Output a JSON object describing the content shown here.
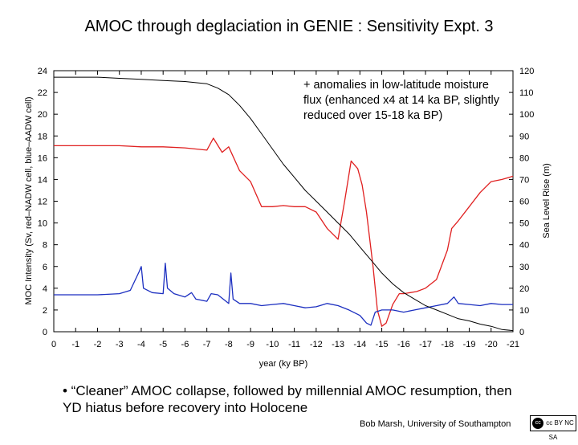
{
  "slide": {
    "title": "AMOC through deglaciation in GENIE : Sensitivity Expt. 3",
    "annotation": "+ anomalies in low-latitude moisture flux (enhanced x4 at 14 ka BP, slightly reduced over 15-18 ka BP)",
    "bullet": "• “Cleaner” AMOC collapse, followed by millennial AMOC resumption, then YD hiatus before recovery into Holocene",
    "credit": "Bob Marsh, University of Southampton",
    "license_badge": "cc BY NC SA"
  },
  "chart_data": {
    "type": "line",
    "xlabel": "year (ky BP)",
    "ylabel_left": "MOC Intensity (Sv, red–NADW cell, blue–AADW cell)",
    "ylabel_right": "Sea Level Rise (m)",
    "xlim": [
      0,
      -21
    ],
    "ylim_left": [
      0,
      24
    ],
    "ylim_right": [
      0,
      120
    ],
    "x_ticks": [
      "0",
      "-1",
      "-2",
      "-3",
      "-4",
      "-5",
      "-6",
      "-7",
      "-8",
      "-9",
      "-10",
      "-11",
      "-12",
      "-13",
      "-14",
      "-15",
      "-16",
      "-17",
      "-18",
      "-19",
      "-20",
      "-21"
    ],
    "y_ticks_left": [
      "0",
      "2",
      "4",
      "6",
      "8",
      "10",
      "12",
      "14",
      "16",
      "18",
      "20",
      "22",
      "24"
    ],
    "y_ticks_right": [
      "0",
      "10",
      "20",
      "30",
      "40",
      "50",
      "60",
      "70",
      "80",
      "90",
      "100",
      "110",
      "120"
    ],
    "colors": {
      "nadw": "#e02020",
      "aadw": "#1c2fc0",
      "sea_level": "#000000"
    },
    "series": [
      {
        "axis": "left",
        "color": "#e02020",
        "x": [
          0,
          -1,
          -2,
          -3,
          -4,
          -5,
          -6,
          -7,
          -7.3,
          -7.7,
          -8,
          -8.5,
          -9,
          -9.5,
          -10,
          -10.5,
          -11,
          -11.5,
          -12,
          -12.5,
          -13,
          -13.3,
          -13.6,
          -13.9,
          -14.1,
          -14.3,
          -14.6,
          -14.8,
          -15,
          -15.2,
          -15.5,
          -15.8,
          -16,
          -16.3,
          -16.6,
          -17,
          -17.5,
          -18,
          -18.2,
          -18.5,
          -19,
          -19.5,
          -20,
          -20.5,
          -21
        ],
        "y": [
          17.1,
          17.1,
          17.1,
          17.1,
          17.0,
          17.0,
          16.9,
          16.7,
          17.8,
          16.5,
          17.0,
          14.8,
          13.8,
          11.5,
          11.5,
          11.6,
          11.5,
          11.5,
          11.0,
          9.5,
          8.5,
          12.0,
          15.7,
          15.0,
          13.5,
          11.0,
          6.0,
          2.0,
          0.5,
          0.8,
          2.5,
          3.5,
          3.5,
          3.6,
          3.7,
          4.0,
          4.8,
          7.5,
          9.5,
          10.2,
          11.5,
          12.8,
          13.8,
          14.0,
          14.3
        ]
      },
      {
        "axis": "left",
        "color": "#1c2fc0",
        "x": [
          0,
          -1,
          -2,
          -3,
          -3.5,
          -3.9,
          -4.0,
          -4.1,
          -4.5,
          -5,
          -5.1,
          -5.2,
          -5.5,
          -6,
          -6.3,
          -6.5,
          -7,
          -7.2,
          -7.5,
          -8,
          -8.1,
          -8.2,
          -8.5,
          -9,
          -9.5,
          -10,
          -10.5,
          -11,
          -11.5,
          -12,
          -12.5,
          -13,
          -13.5,
          -14,
          -14.3,
          -14.5,
          -14.7,
          -15,
          -15.5,
          -16,
          -16.5,
          -17,
          -17.5,
          -18,
          -18.3,
          -18.5,
          -19,
          -19.5,
          -20,
          -20.5,
          -21
        ],
        "y": [
          3.4,
          3.4,
          3.4,
          3.5,
          3.8,
          5.5,
          6.0,
          4.0,
          3.6,
          3.5,
          6.3,
          4.0,
          3.5,
          3.2,
          3.6,
          3.0,
          2.8,
          3.5,
          3.4,
          2.6,
          5.4,
          3.0,
          2.6,
          2.6,
          2.4,
          2.5,
          2.6,
          2.4,
          2.2,
          2.3,
          2.6,
          2.4,
          2.0,
          1.5,
          0.8,
          0.6,
          1.8,
          2.0,
          2.0,
          1.8,
          2.0,
          2.2,
          2.4,
          2.6,
          3.2,
          2.6,
          2.5,
          2.4,
          2.6,
          2.5,
          2.5
        ]
      },
      {
        "axis": "right",
        "color": "#000000",
        "x": [
          0,
          -1,
          -2,
          -3,
          -4,
          -5,
          -6,
          -7,
          -7.5,
          -8,
          -8.5,
          -9,
          -9.5,
          -10,
          -10.5,
          -11,
          -11.5,
          -12,
          -12.5,
          -13,
          -13.5,
          -14,
          -14.5,
          -15,
          -15.5,
          -16,
          -16.5,
          -17,
          -17.5,
          -18,
          -18.5,
          -19,
          -19.5,
          -20,
          -20.5,
          -21
        ],
        "y": [
          117,
          117,
          117,
          116.5,
          116,
          115.5,
          115,
          114,
          112,
          109,
          104,
          98,
          91,
          84,
          77,
          71,
          65,
          60,
          55,
          50,
          45,
          39,
          33,
          27,
          22,
          18,
          15,
          12,
          10,
          8,
          6,
          5,
          3.5,
          2.5,
          1,
          0.5
        ]
      }
    ]
  }
}
